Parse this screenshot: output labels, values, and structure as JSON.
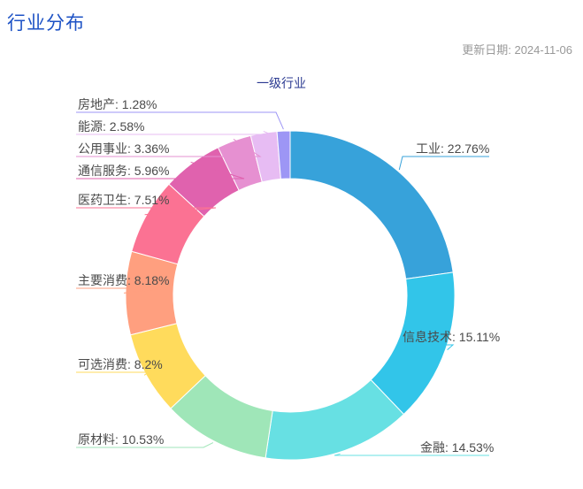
{
  "header": {
    "title": "行业分布",
    "update_date": "更新日期: 2024-11-06"
  },
  "chart_data": {
    "type": "pie",
    "variant": "donut",
    "title": "一级行业",
    "legend": "none",
    "unit": "%",
    "label_format": "{name}: {value}%",
    "direction": "clockwise",
    "start_angle_deg": 0,
    "categories": [
      "工业",
      "信息技术",
      "金融",
      "原材料",
      "可选消费",
      "主要消费",
      "医药卫生",
      "通信服务",
      "公用事业",
      "能源",
      "房地产"
    ],
    "values": [
      22.76,
      15.11,
      14.53,
      10.53,
      8.2,
      8.18,
      7.51,
      5.96,
      3.36,
      2.58,
      1.28
    ],
    "colors": [
      "#37a2da",
      "#32c5e9",
      "#67e0e3",
      "#9fe6b8",
      "#ffdb5c",
      "#ff9f7f",
      "#fb7293",
      "#e062ae",
      "#e690d1",
      "#e7bcf3",
      "#9d96f5"
    ]
  },
  "styles": {
    "title_color": "#1d52c5",
    "date_color": "#999999",
    "chart_title_color": "#2b3a91",
    "label_text_color": "#4a4a4a",
    "background": "#ffffff"
  }
}
